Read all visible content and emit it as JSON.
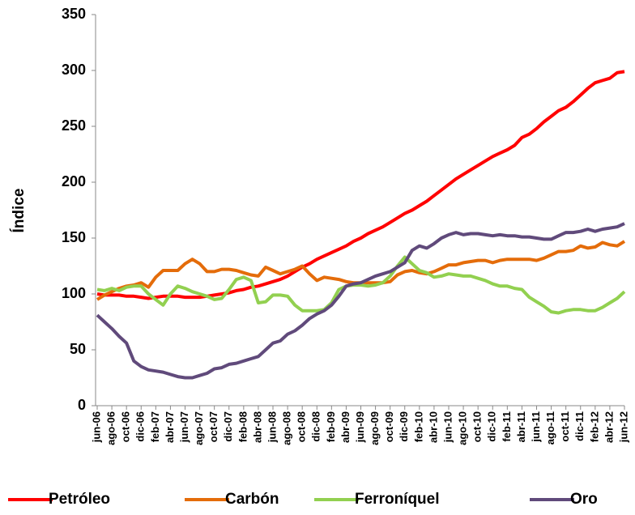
{
  "chart_data": {
    "type": "line",
    "ylabel": "Índice",
    "categories": [
      "jun-06",
      null,
      "ago-06",
      null,
      "oct-06",
      null,
      "dic-06",
      null,
      "feb-07",
      null,
      "abr-07",
      null,
      "jun-07",
      null,
      "ago-07",
      null,
      "oct-07",
      null,
      "dic-07",
      null,
      "feb-08",
      null,
      "abr-08",
      null,
      "jun-08",
      null,
      "ago-08",
      null,
      "oct-08",
      null,
      "dic-08",
      null,
      "feb-09",
      null,
      "abr-09",
      null,
      "jun-09",
      null,
      "ago-09",
      null,
      "oct-09",
      null,
      "dic-09",
      null,
      "feb-10",
      null,
      "abr-10",
      null,
      "jun-10",
      null,
      "ago-10",
      null,
      "oct-10",
      null,
      "dic-10",
      null,
      "feb-11",
      null,
      "abr-11",
      null,
      "jun-11",
      null,
      "ago-11",
      null,
      "oct-11",
      null,
      "dic-11",
      null,
      "feb-12",
      null,
      "abr-12",
      null,
      "jun-12"
    ],
    "series": [
      {
        "name": "Petróleo",
        "color": "#ff0000",
        "values": [
          100,
          99,
          99,
          99,
          98,
          98,
          97,
          96,
          97,
          98,
          98,
          98,
          97,
          97,
          97,
          98,
          99,
          100,
          101,
          103,
          104,
          106,
          107,
          109,
          111,
          113,
          116,
          120,
          124,
          127,
          131,
          134,
          137,
          140,
          143,
          147,
          150,
          154,
          157,
          160,
          164,
          168,
          172,
          175,
          179,
          183,
          188,
          193,
          198,
          203,
          207,
          211,
          215,
          219,
          223,
          226,
          229,
          233,
          240,
          243,
          248,
          254,
          259,
          264,
          267,
          272,
          278,
          284,
          289,
          291,
          293,
          298,
          299
        ]
      },
      {
        "name": "Carbón",
        "color": "#e46c0a",
        "values": [
          95,
          99,
          102,
          105,
          107,
          108,
          110,
          106,
          115,
          121,
          121,
          121,
          127,
          131,
          127,
          120,
          120,
          122,
          122,
          121,
          119,
          117,
          116,
          124,
          121,
          118,
          120,
          122,
          125,
          118,
          112,
          115,
          114,
          113,
          111,
          110,
          110,
          110,
          110,
          110,
          111,
          117,
          120,
          121,
          119,
          118,
          120,
          123,
          126,
          126,
          128,
          129,
          130,
          130,
          128,
          130,
          131,
          131,
          131,
          131,
          130,
          132,
          135,
          138,
          138,
          139,
          143,
          141,
          142,
          146,
          144,
          143,
          147
        ]
      },
      {
        "name": "Ferroníquel",
        "color": "#92d050",
        "values": [
          104,
          103,
          105,
          103,
          106,
          107,
          107,
          100,
          95,
          90,
          100,
          107,
          105,
          102,
          100,
          98,
          95,
          96,
          104,
          113,
          115,
          112,
          92,
          93,
          99,
          99,
          98,
          90,
          85,
          85,
          85,
          86,
          92,
          104,
          107,
          108,
          108,
          107,
          108,
          110,
          116,
          125,
          133,
          127,
          121,
          119,
          115,
          116,
          118,
          117,
          116,
          116,
          114,
          112,
          109,
          107,
          107,
          105,
          104,
          97,
          93,
          89,
          84,
          83,
          85,
          86,
          86,
          85,
          85,
          88,
          92,
          96,
          102
        ]
      },
      {
        "name": "Oro",
        "color": "#604a7b",
        "values": [
          81,
          75,
          69,
          62,
          56,
          40,
          35,
          32,
          31,
          30,
          28,
          26,
          25,
          25,
          27,
          29,
          33,
          34,
          37,
          38,
          40,
          42,
          44,
          50,
          56,
          58,
          64,
          67,
          72,
          78,
          82,
          85,
          90,
          98,
          107,
          109,
          110,
          113,
          116,
          118,
          120,
          124,
          128,
          139,
          143,
          141,
          145,
          150,
          153,
          155,
          153,
          154,
          154,
          153,
          152,
          153,
          152,
          152,
          151,
          151,
          150,
          149,
          149,
          152,
          155,
          155,
          156,
          158,
          156,
          158,
          159,
          160,
          163
        ]
      }
    ],
    "ylim": [
      0,
      350
    ],
    "yticks": [
      0,
      50,
      100,
      150,
      200,
      250,
      300,
      350
    ],
    "grid": false,
    "legend": "bottom"
  }
}
